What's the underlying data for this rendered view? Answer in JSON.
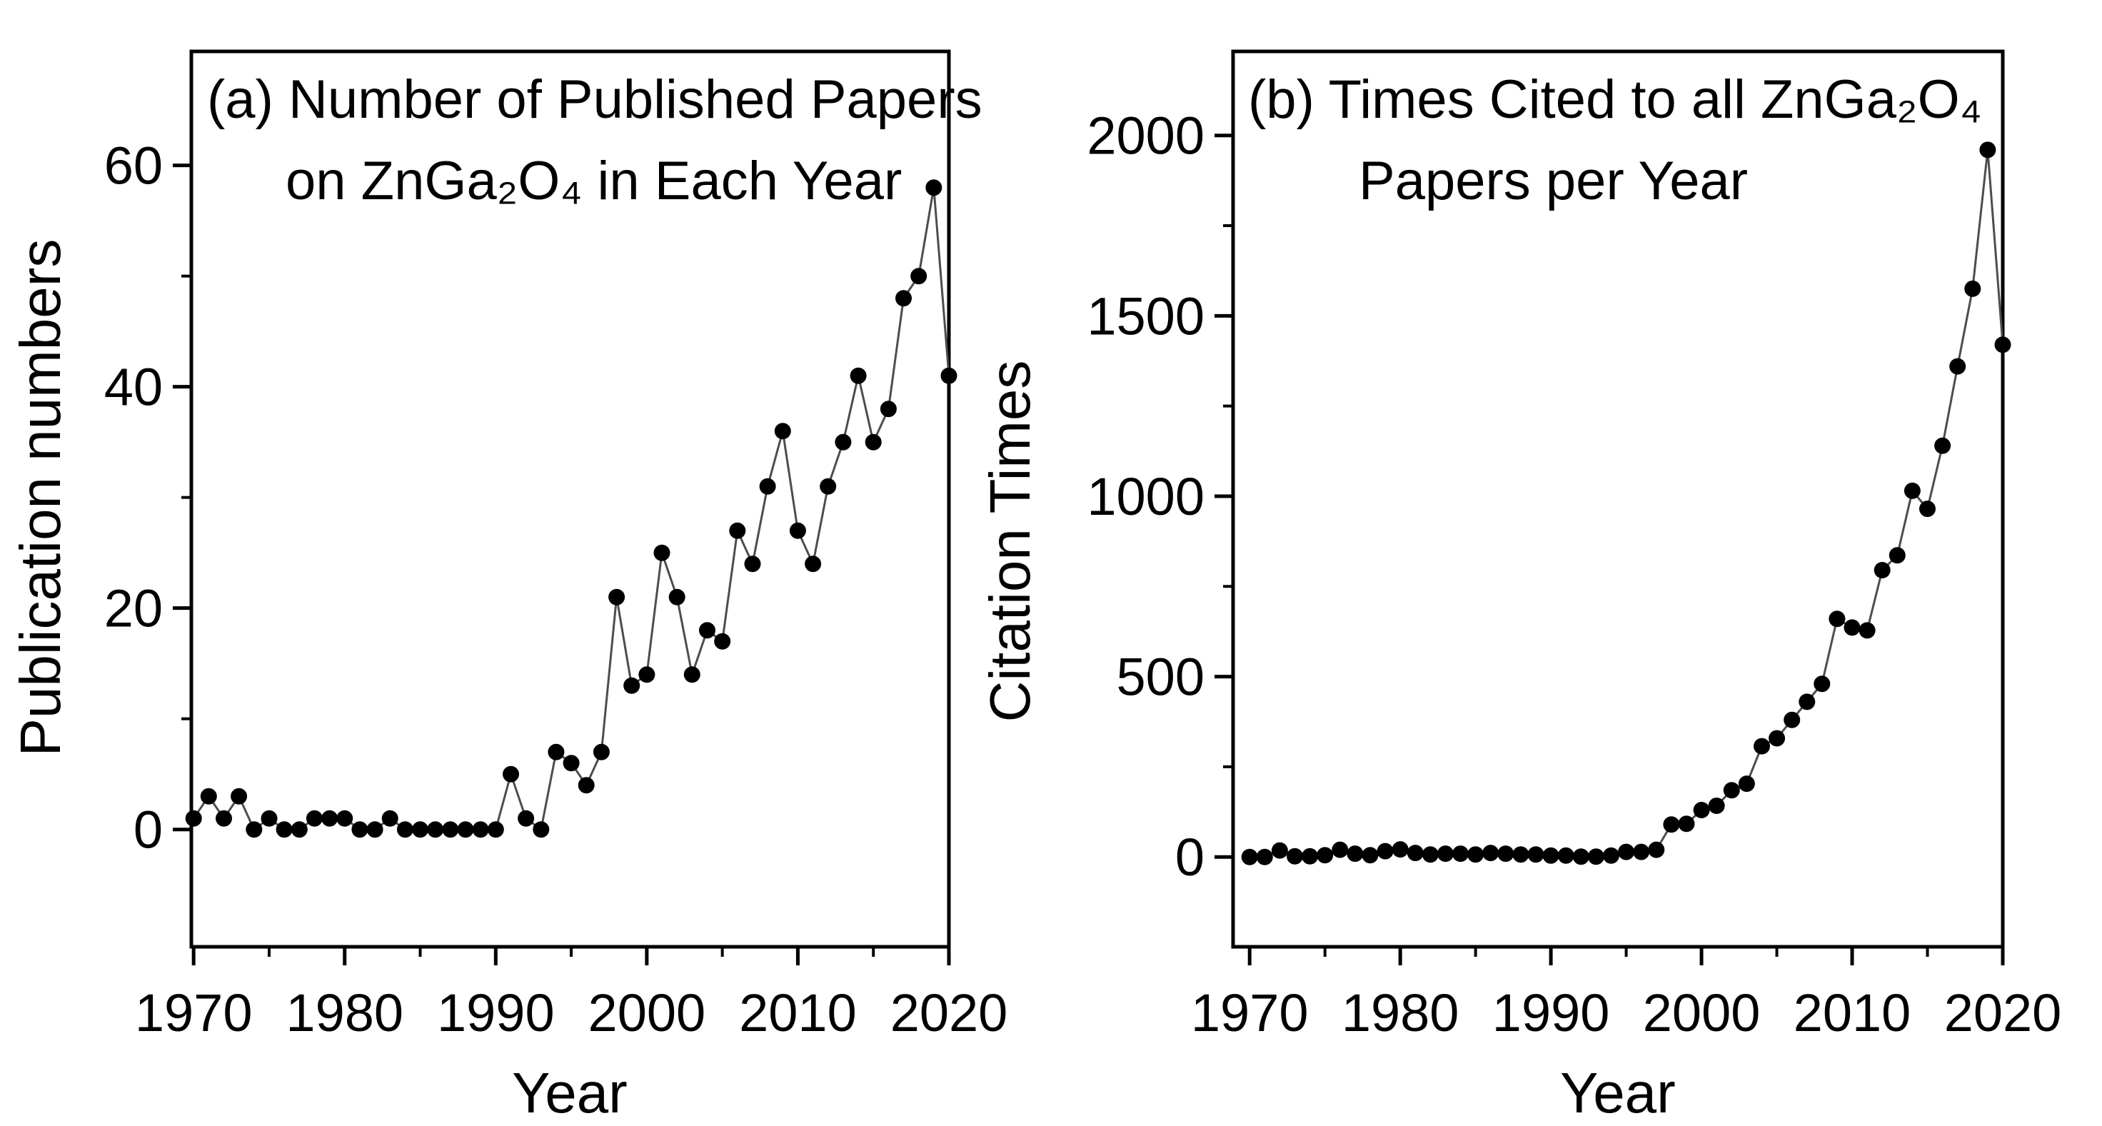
{
  "figure": {
    "kind": "two-panel scatter-line scientific figure",
    "background_color": "#ffffff",
    "colors": {
      "point": "#000000",
      "line": "#4d4d4d",
      "axis": "#000000",
      "text": "#000000"
    }
  },
  "chart_data": [
    {
      "type": "scatter",
      "panel": "a",
      "title_lines": [
        "(a) Number of Published Papers",
        "on ZnGa₂O₄ in Each Year"
      ],
      "xlabel": "Year",
      "ylabel": "Publication numbers",
      "x": [
        1970,
        1971,
        1972,
        1973,
        1974,
        1975,
        1976,
        1977,
        1978,
        1979,
        1980,
        1981,
        1982,
        1983,
        1984,
        1985,
        1986,
        1987,
        1988,
        1989,
        1990,
        1991,
        1992,
        1993,
        1994,
        1995,
        1996,
        1997,
        1998,
        1999,
        2000,
        2001,
        2002,
        2003,
        2004,
        2005,
        2006,
        2007,
        2008,
        2009,
        2010,
        2011,
        2012,
        2013,
        2014,
        2015,
        2016,
        2017,
        2018,
        2019,
        2020
      ],
      "y": [
        1,
        3,
        1,
        3,
        0,
        1,
        0,
        0,
        1,
        1,
        1,
        0,
        0,
        1,
        0,
        0,
        0,
        0,
        0,
        0,
        0,
        5,
        1,
        0,
        7,
        6,
        4,
        7,
        21,
        13,
        14,
        25,
        21,
        14,
        18,
        17,
        27,
        24,
        31,
        36,
        27,
        24,
        31,
        35,
        41,
        35,
        38,
        48,
        50,
        58,
        41
      ],
      "xlim": [
        1969.85,
        2020
      ],
      "ylim": [
        -10.6,
        70.3
      ],
      "xticks_major": [
        1970,
        1980,
        1990,
        2000,
        2010,
        2020
      ],
      "xticks_minor": [
        1975,
        1985,
        1995,
        2005,
        2015
      ],
      "yticks_major": [
        0,
        20,
        40,
        60
      ],
      "yticks_minor": [
        10,
        30,
        50
      ],
      "grid": false,
      "legend": null
    },
    {
      "type": "scatter",
      "panel": "b",
      "title_lines": [
        "(b) Times Cited to all ZnGa₂O₄",
        "Papers per Year"
      ],
      "xlabel": "Year",
      "ylabel": "Citation Times",
      "x": [
        1970,
        1971,
        1972,
        1973,
        1974,
        1975,
        1976,
        1977,
        1978,
        1979,
        1980,
        1981,
        1982,
        1983,
        1984,
        1985,
        1986,
        1987,
        1988,
        1989,
        1990,
        1991,
        1992,
        1993,
        1994,
        1995,
        1996,
        1997,
        1998,
        1999,
        2000,
        2001,
        2002,
        2003,
        2004,
        2005,
        2006,
        2007,
        2008,
        2009,
        2010,
        2011,
        2012,
        2013,
        2014,
        2015,
        2016,
        2017,
        2018,
        2019,
        2020
      ],
      "y": [
        0,
        0,
        18,
        2,
        2,
        5,
        20,
        9,
        5,
        16,
        21,
        11,
        7,
        9,
        9,
        7,
        11,
        9,
        7,
        7,
        4,
        4,
        1,
        1,
        4,
        14,
        14,
        20,
        90,
        92,
        130,
        142,
        185,
        203,
        307,
        329,
        380,
        430,
        480,
        660,
        636,
        628,
        795,
        836,
        1015,
        965,
        1140,
        1360,
        1575,
        1960,
        1420
      ],
      "xlim": [
        1968.9,
        2020
      ],
      "ylim": [
        -249,
        2233
      ],
      "xticks_major": [
        1970,
        1980,
        1990,
        2000,
        2010,
        2020
      ],
      "xticks_minor": [
        1975,
        1985,
        1995,
        2005,
        2015
      ],
      "yticks_major": [
        0,
        500,
        1000,
        1500,
        2000
      ],
      "yticks_minor": [
        250,
        750,
        1250,
        1750
      ],
      "grid": false,
      "legend": null
    }
  ]
}
